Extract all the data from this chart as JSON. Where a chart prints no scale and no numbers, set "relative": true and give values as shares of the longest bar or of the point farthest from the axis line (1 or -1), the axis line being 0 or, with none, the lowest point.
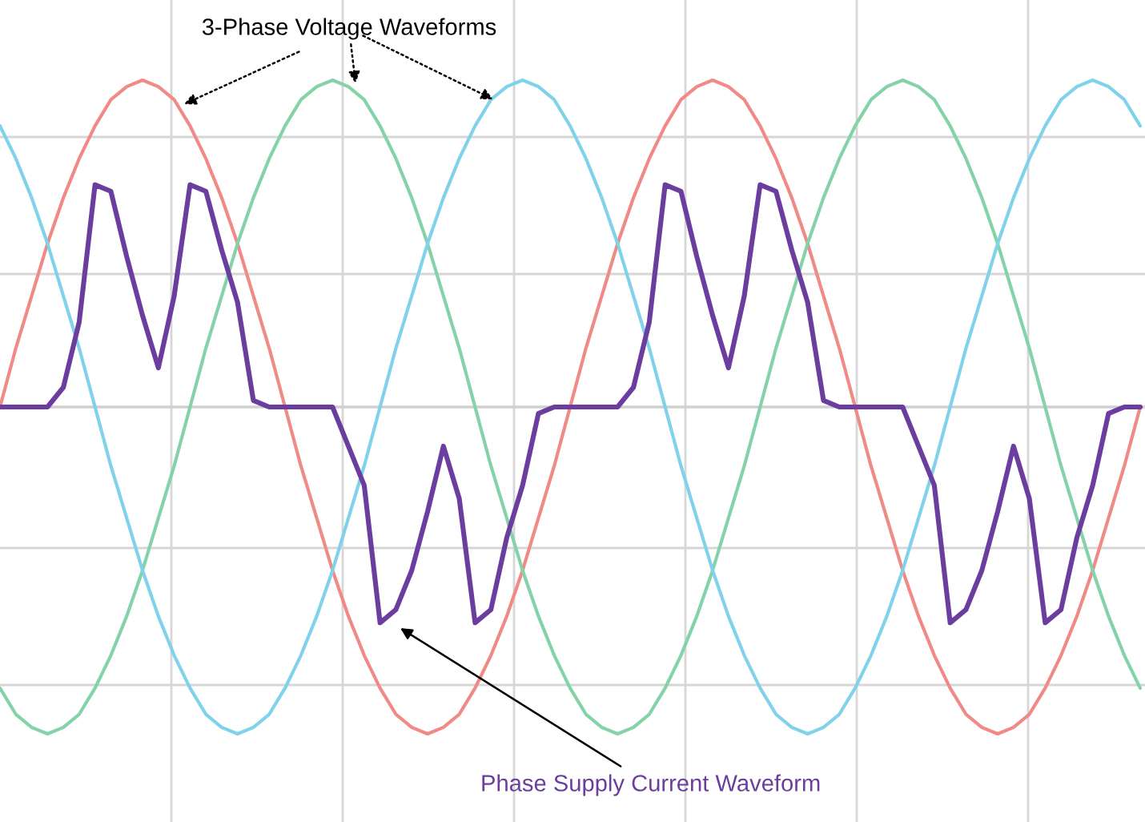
{
  "chart_data": {
    "type": "line",
    "relative": true,
    "grid": true,
    "marker": "none",
    "line_style": "solid",
    "categories": [
      null,
      null,
      null,
      null,
      null,
      null,
      null,
      null,
      null,
      null,
      null,
      null,
      null,
      null,
      null,
      null,
      null,
      null,
      null,
      null,
      null,
      null,
      null,
      null,
      null,
      null,
      null,
      null,
      null,
      null,
      null,
      null,
      null,
      null,
      null,
      null,
      null,
      null,
      null,
      null,
      null,
      null,
      null,
      null,
      null,
      null,
      null,
      null,
      null,
      null,
      null,
      null,
      null,
      null,
      null,
      null,
      null,
      null,
      null,
      null,
      null,
      null,
      null,
      null,
      null,
      null,
      null,
      null,
      null,
      null,
      null,
      null,
      null
    ],
    "series": [
      {
        "color": "#f08a86",
        "values": [
          0,
          0.18,
          0.34,
          0.5,
          0.64,
          0.76,
          0.86,
          0.94,
          0.98,
          1,
          0.98,
          0.94,
          0.86,
          0.76,
          0.64,
          0.5,
          0.34,
          0.18,
          0,
          -0.18,
          -0.34,
          -0.5,
          -0.64,
          -0.76,
          -0.86,
          -0.94,
          -0.98,
          -1,
          -0.98,
          -0.94,
          -0.86,
          -0.76,
          -0.64,
          -0.5,
          -0.34,
          -0.18,
          0,
          0.18,
          0.34,
          0.5,
          0.64,
          0.76,
          0.86,
          0.94,
          0.98,
          1,
          0.98,
          0.94,
          0.86,
          0.76,
          0.64,
          0.5,
          0.34,
          0.18,
          0,
          -0.18,
          -0.34,
          -0.5,
          -0.64,
          -0.76,
          -0.86,
          -0.94,
          -0.98,
          -1,
          -0.98,
          -0.94,
          -0.86,
          -0.76,
          -0.64,
          -0.5,
          -0.34,
          -0.18,
          0
        ]
      },
      {
        "color": "#84d3a8",
        "values": [
          -0.86,
          -0.94,
          -0.98,
          -1,
          -0.98,
          -0.94,
          -0.86,
          -0.76,
          -0.64,
          -0.5,
          -0.34,
          -0.18,
          0,
          0.18,
          0.34,
          0.5,
          0.64,
          0.76,
          0.86,
          0.94,
          0.98,
          1,
          0.98,
          0.94,
          0.86,
          0.76,
          0.64,
          0.5,
          0.34,
          0.18,
          0,
          -0.18,
          -0.34,
          -0.5,
          -0.64,
          -0.76,
          -0.86,
          -0.94,
          -0.98,
          -1,
          -0.98,
          -0.94,
          -0.86,
          -0.76,
          -0.64,
          -0.5,
          -0.34,
          -0.18,
          0,
          0.18,
          0.34,
          0.5,
          0.64,
          0.76,
          0.86,
          0.94,
          0.98,
          1,
          0.98,
          0.94,
          0.86,
          0.76,
          0.64,
          0.5,
          0.34,
          0.18,
          0,
          -0.18,
          -0.34,
          -0.5,
          -0.64,
          -0.76,
          -0.86
        ]
      },
      {
        "color": "#7fd2ea",
        "values": [
          0.86,
          0.76,
          0.64,
          0.5,
          0.34,
          0.18,
          0,
          -0.18,
          -0.34,
          -0.5,
          -0.64,
          -0.76,
          -0.86,
          -0.94,
          -0.98,
          -1,
          -0.98,
          -0.94,
          -0.86,
          -0.76,
          -0.64,
          -0.5,
          -0.34,
          -0.18,
          0,
          0.18,
          0.34,
          0.5,
          0.64,
          0.76,
          0.86,
          0.94,
          0.98,
          1,
          0.98,
          0.94,
          0.86,
          0.76,
          0.64,
          0.5,
          0.34,
          0.18,
          0,
          -0.18,
          -0.34,
          -0.5,
          -0.64,
          -0.76,
          -0.86,
          -0.94,
          -0.98,
          -1,
          -0.98,
          -0.94,
          -0.86,
          -0.76,
          -0.64,
          -0.5,
          -0.34,
          -0.18,
          0,
          0.18,
          0.34,
          0.5,
          0.64,
          0.76,
          0.86,
          0.94,
          0.98,
          1,
          0.98,
          0.94,
          0.86
        ]
      },
      {
        "color": "#6a3d9e",
        "values": [
          0,
          0,
          0,
          0,
          0.06,
          0.26,
          0.68,
          0.66,
          0.46,
          0.28,
          0.12,
          0.34,
          0.68,
          0.66,
          0.48,
          0.32,
          0.02,
          0,
          0,
          0,
          0,
          0,
          -0.12,
          -0.24,
          -0.66,
          -0.62,
          -0.5,
          -0.32,
          -0.12,
          -0.28,
          -0.66,
          -0.62,
          -0.4,
          -0.24,
          -0.02,
          0,
          0,
          0,
          0,
          0,
          0.06,
          0.26,
          0.68,
          0.66,
          0.46,
          0.28,
          0.12,
          0.34,
          0.68,
          0.66,
          0.48,
          0.32,
          0.02,
          0,
          0,
          0,
          0,
          0,
          -0.12,
          -0.24,
          -0.66,
          -0.62,
          -0.5,
          -0.32,
          -0.12,
          -0.28,
          -0.66,
          -0.62,
          -0.4,
          -0.24,
          -0.02,
          0,
          0
        ]
      }
    ],
    "annotations": [
      "3-Phase Voltage Waveforms",
      "Phase Supply Current Waveform"
    ]
  }
}
